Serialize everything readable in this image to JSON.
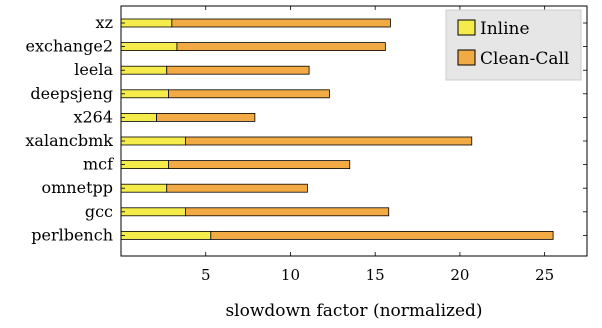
{
  "chart_data": {
    "type": "bar",
    "orientation": "horizontal",
    "stacked": true,
    "categories": [
      "xz",
      "exchange2",
      "leela",
      "deepsjeng",
      "x264",
      "xalancbmk",
      "mcf",
      "omnetpp",
      "gcc",
      "perlbench"
    ],
    "series": [
      {
        "name": "Inline",
        "color": "#f5ec4c",
        "values": [
          3.0,
          3.3,
          2.7,
          2.8,
          2.1,
          3.8,
          2.8,
          2.7,
          3.8,
          5.3
        ]
      },
      {
        "name": "Clean-Call",
        "color": "#f2aa45",
        "values": [
          12.9,
          12.3,
          8.4,
          9.5,
          5.8,
          16.9,
          10.7,
          8.3,
          12.0,
          20.2
        ]
      }
    ],
    "xlabel": "slowdown factor (normalized)",
    "ylabel": "",
    "xlim": [
      0,
      27.5
    ],
    "xticks": [
      5,
      10,
      15,
      20,
      25
    ],
    "grid": false,
    "legend_position": "top-right"
  }
}
